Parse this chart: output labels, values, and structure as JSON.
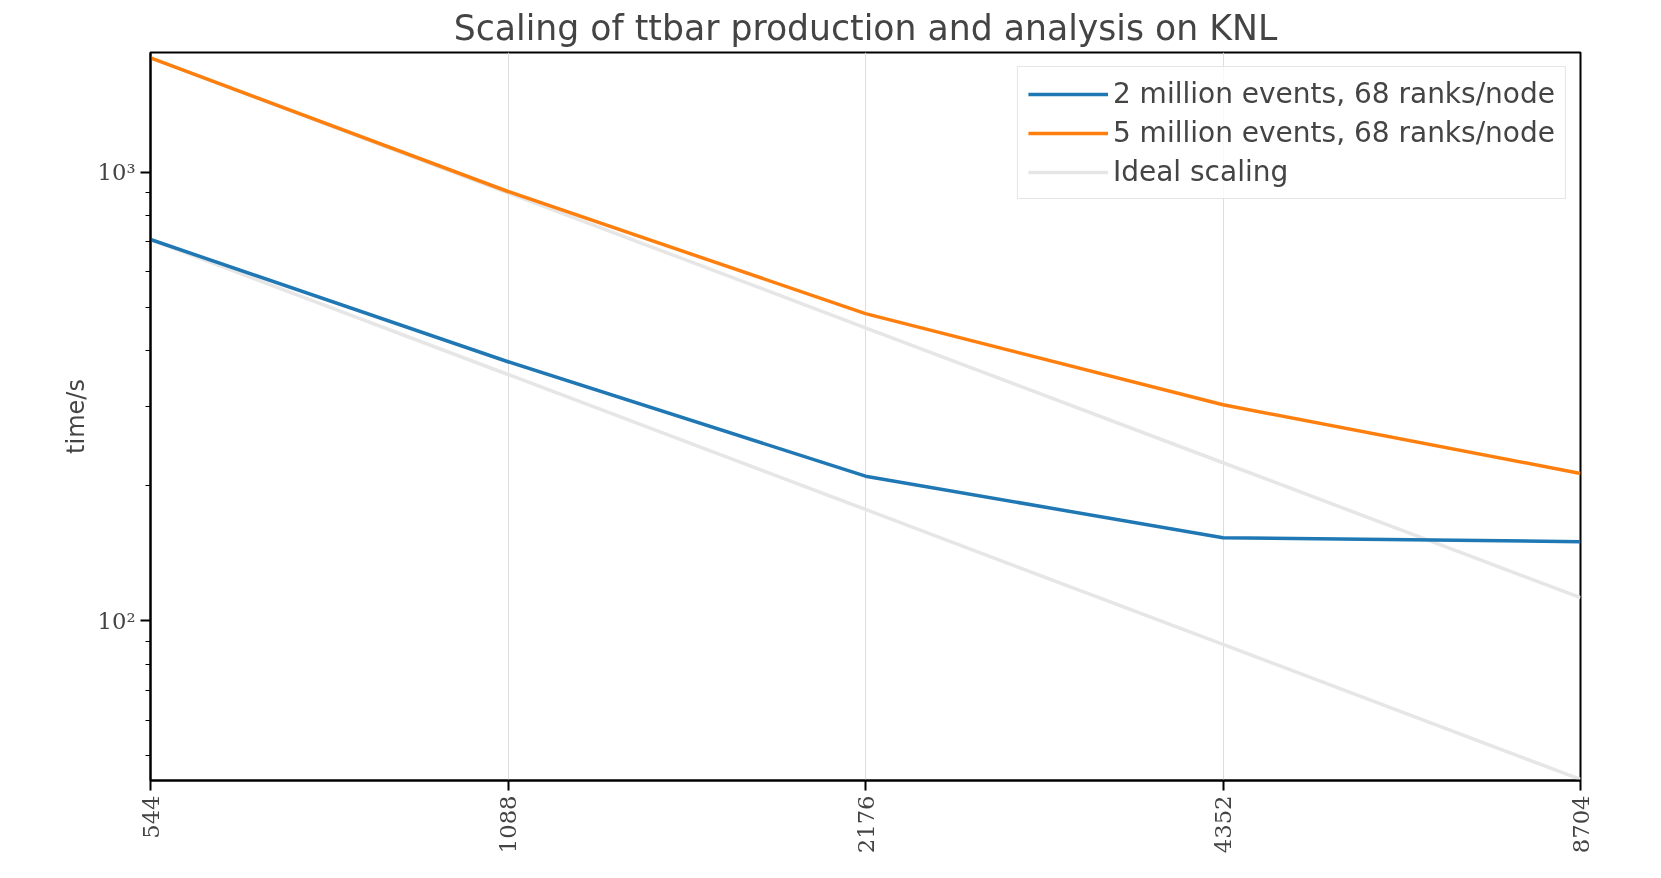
{
  "chart_data": {
    "type": "line",
    "title": "Scaling of ttbar production and analysis on KNL",
    "ylabel": "time/s",
    "x": [
      544,
      1088,
      2176,
      4352,
      8704
    ],
    "series": [
      {
        "name": "2 million events, 68 ranks/node",
        "color": "#1f77b4",
        "values": [
          708,
          378,
          210,
          153,
          150
        ]
      },
      {
        "name": "5 million events, 68 ranks/node",
        "color": "#ff7f0e",
        "values": [
          1800,
          906,
          484,
          303,
          213
        ]
      },
      {
        "name": "Ideal scaling",
        "color": "#e6e6e6",
        "values": [
          1800,
          900,
          450,
          225,
          112.5
        ]
      },
      {
        "color": "#e6e6e6",
        "values": [
          708,
          354,
          177,
          88.5,
          44.25
        ]
      }
    ],
    "log": "xy",
    "xlim": [
      544,
      8704
    ],
    "ylim": [
      44,
      1850
    ],
    "xticks": [
      544,
      1088,
      2176,
      4352,
      8704
    ],
    "yticks": [
      {
        "value": 100,
        "label": "10²"
      },
      {
        "value": 1000,
        "label": "10³"
      }
    ],
    "grid": "x",
    "legend": "top right",
    "marker": "none",
    "line_style": "solid"
  }
}
